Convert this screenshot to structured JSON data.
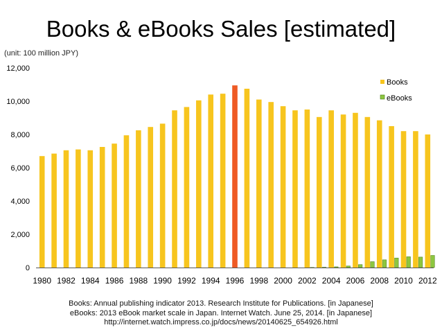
{
  "chart_data": {
    "type": "bar",
    "title": "Books & eBooks Sales [estimated]",
    "unit_label": "(unit: 100 million JPY)",
    "categories": [
      "1980",
      "1981",
      "1982",
      "1983",
      "1984",
      "1985",
      "1986",
      "1987",
      "1988",
      "1989",
      "1990",
      "1991",
      "1992",
      "1993",
      "1994",
      "1995",
      "1996",
      "1997",
      "1998",
      "1999",
      "2000",
      "2001",
      "2002",
      "2003",
      "2004",
      "2005",
      "2006",
      "2007",
      "2008",
      "2009",
      "2010",
      "2011",
      "2012"
    ],
    "x_tick_labels": [
      "1980",
      "1982",
      "1984",
      "1986",
      "1988",
      "1990",
      "1992",
      "1994",
      "1996",
      "1998",
      "2000",
      "2002",
      "2004",
      "2006",
      "2008",
      "2010",
      "2012"
    ],
    "series": [
      {
        "name": "Books",
        "color": "#F7C51E",
        "values": [
          6700,
          6850,
          7050,
          7100,
          7050,
          7250,
          7450,
          7950,
          8250,
          8450,
          8650,
          9450,
          9650,
          10050,
          10400,
          10450,
          10950,
          10750,
          10100,
          9950,
          9700,
          9450,
          9500,
          9050,
          9450,
          9200,
          9300,
          9050,
          8850,
          8500,
          8200,
          8200,
          8000
        ]
      },
      {
        "name": "eBooks",
        "color": "#8DC63F",
        "values": [
          0,
          0,
          0,
          0,
          0,
          0,
          0,
          0,
          0,
          0,
          0,
          0,
          0,
          0,
          0,
          0,
          0,
          0,
          0,
          0,
          0,
          0,
          10,
          20,
          45,
          95,
          180,
          355,
          465,
          575,
          650,
          630,
          730
        ]
      }
    ],
    "highlight": {
      "category": "1996",
      "color": "#EE5A24"
    },
    "ylim": [
      0,
      12000
    ],
    "y_ticks": [
      0,
      2000,
      4000,
      6000,
      8000,
      10000,
      12000
    ],
    "y_tick_labels": [
      "0",
      "2,000",
      "4,000",
      "6,000",
      "8,000",
      "10,000",
      "12,000"
    ],
    "grid": false,
    "legend": "top-right",
    "xlabel": "",
    "ylabel": ""
  },
  "sources": [
    "Books: Annual publishing indicator 2013. Research Institute for Publications. [in Japanese]",
    "eBooks: 2013 eBook market scale in Japan. Internet Watch. June 25, 2014. [in Japanese]",
    "http://internet.watch.impress.co.jp/docs/news/20140625_654926.html"
  ]
}
